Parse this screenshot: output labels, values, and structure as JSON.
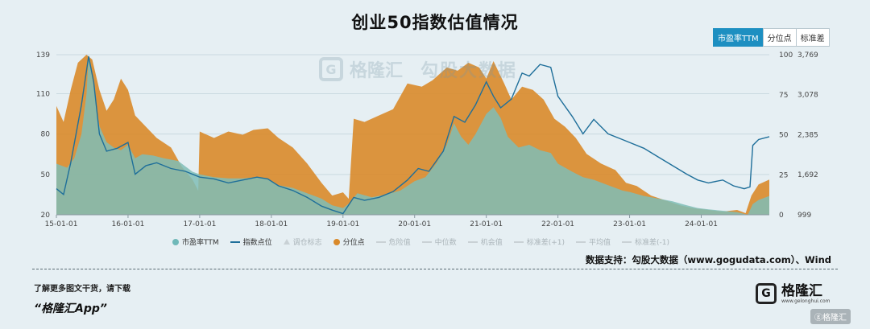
{
  "title": "创业50指数估值情况",
  "tabs": [
    {
      "label": "市盈率TTM",
      "active": true
    },
    {
      "label": "分位点",
      "active": false
    },
    {
      "label": "标准差",
      "active": false
    }
  ],
  "watermark": {
    "mark": "G",
    "name": "格隆汇",
    "sub": "勾股大数据"
  },
  "legend": [
    {
      "label": "市盈率TTM",
      "symbol": "dot",
      "color": "#6fb8b8",
      "muted": false
    },
    {
      "label": "指数点位",
      "symbol": "line",
      "color": "#1f6f9a",
      "muted": false
    },
    {
      "label": "调仓标志",
      "symbol": "tri",
      "color": "#c9d1d5",
      "muted": true
    },
    {
      "label": "分位点",
      "symbol": "dot",
      "color": "#d9892a",
      "muted": false
    },
    {
      "label": "危险值",
      "symbol": "line",
      "color": "#c9d1d5",
      "muted": true
    },
    {
      "label": "中位数",
      "symbol": "line",
      "color": "#c9d1d5",
      "muted": true
    },
    {
      "label": "机会值",
      "symbol": "line",
      "color": "#c9d1d5",
      "muted": true
    },
    {
      "label": "标准差(+1)",
      "symbol": "line",
      "color": "#c9d1d5",
      "muted": true
    },
    {
      "label": "平均值",
      "symbol": "line",
      "color": "#c9d1d5",
      "muted": true
    },
    {
      "label": "标准差(-1)",
      "symbol": "line",
      "color": "#c9d1d5",
      "muted": true
    }
  ],
  "source_text": "数据支持：勾股大数据（www.gogudata.com）、Wind",
  "promo": {
    "line1": "了解更多图文干货，请下载",
    "line2": "“格隆汇App”"
  },
  "brand": {
    "mark": "G",
    "name": "格隆汇",
    "url": "www.gelonghui.com"
  },
  "corner_badge": "ⓖ格隆汇",
  "colors": {
    "pe_fill": "#7fbdb6",
    "percentile_fill": "#d9892a",
    "index_line": "#1f6f9a",
    "grid": "#c9d9e0"
  },
  "chart_data": {
    "type": "area",
    "title": "创业50指数估值情况",
    "x_ticks": [
      "15-01-01",
      "16-01-01",
      "17-01-01",
      "18-01-01",
      "19-01-01",
      "20-01-01",
      "21-01-01",
      "22-01-01",
      "23-01-01",
      "24-01-01"
    ],
    "x_range": [
      2015.0,
      2024.95
    ],
    "y_left": {
      "ticks": [
        20,
        50,
        80,
        110,
        139
      ],
      "range": [
        20,
        139
      ]
    },
    "y_percentile": {
      "ticks": [
        0,
        25,
        50,
        75,
        100
      ],
      "range": [
        0,
        100
      ]
    },
    "y_index": {
      "ticks": [
        999,
        1692,
        2385,
        3078,
        3769
      ],
      "range": [
        999,
        3769
      ]
    },
    "legend_placement": "bottom",
    "grid": true,
    "series": [
      {
        "name": "市盈率TTM",
        "axis": "left",
        "kind": "area",
        "points": [
          [
            2015.0,
            58
          ],
          [
            2015.15,
            55
          ],
          [
            2015.25,
            62
          ],
          [
            2015.35,
            80
          ],
          [
            2015.42,
            110
          ],
          [
            2015.45,
            139
          ],
          [
            2015.52,
            115
          ],
          [
            2015.6,
            86
          ],
          [
            2015.7,
            74
          ],
          [
            2015.8,
            70
          ],
          [
            2015.9,
            68
          ],
          [
            2016.0,
            72
          ],
          [
            2016.1,
            62
          ],
          [
            2016.2,
            65
          ],
          [
            2016.35,
            64
          ],
          [
            2016.5,
            62
          ],
          [
            2016.7,
            60
          ],
          [
            2016.9,
            52
          ],
          [
            2017.0,
            50
          ],
          [
            2017.2,
            48
          ],
          [
            2017.4,
            47
          ],
          [
            2017.6,
            47
          ],
          [
            2017.8,
            48
          ],
          [
            2017.95,
            47
          ],
          [
            2018.1,
            42
          ],
          [
            2018.3,
            40
          ],
          [
            2018.5,
            36
          ],
          [
            2018.7,
            32
          ],
          [
            2018.85,
            27
          ],
          [
            2019.0,
            25
          ],
          [
            2019.1,
            29
          ],
          [
            2019.2,
            36
          ],
          [
            2019.4,
            33
          ],
          [
            2019.6,
            35
          ],
          [
            2019.8,
            38
          ],
          [
            2020.0,
            45
          ],
          [
            2020.15,
            48
          ],
          [
            2020.3,
            58
          ],
          [
            2020.45,
            72
          ],
          [
            2020.55,
            88
          ],
          [
            2020.65,
            78
          ],
          [
            2020.75,
            72
          ],
          [
            2020.85,
            80
          ],
          [
            2021.0,
            95
          ],
          [
            2021.1,
            100
          ],
          [
            2021.2,
            92
          ],
          [
            2021.3,
            78
          ],
          [
            2021.45,
            70
          ],
          [
            2021.6,
            72
          ],
          [
            2021.75,
            68
          ],
          [
            2021.9,
            66
          ],
          [
            2022.0,
            58
          ],
          [
            2022.2,
            52
          ],
          [
            2022.35,
            48
          ],
          [
            2022.5,
            46
          ],
          [
            2022.7,
            42
          ],
          [
            2022.9,
            38
          ],
          [
            2023.0,
            37
          ],
          [
            2023.2,
            34
          ],
          [
            2023.4,
            32
          ],
          [
            2023.6,
            30
          ],
          [
            2023.8,
            27
          ],
          [
            2023.95,
            25
          ],
          [
            2024.1,
            24
          ],
          [
            2024.3,
            23
          ],
          [
            2024.5,
            22
          ],
          [
            2024.65,
            20
          ],
          [
            2024.72,
            28
          ],
          [
            2024.8,
            31
          ],
          [
            2024.95,
            34
          ]
        ]
      },
      {
        "name": "分位点",
        "axis": "percentile",
        "kind": "area",
        "points": [
          [
            2015.0,
            68
          ],
          [
            2015.1,
            58
          ],
          [
            2015.2,
            78
          ],
          [
            2015.3,
            95
          ],
          [
            2015.42,
            100
          ],
          [
            2015.5,
            97
          ],
          [
            2015.6,
            78
          ],
          [
            2015.7,
            65
          ],
          [
            2015.8,
            72
          ],
          [
            2015.9,
            85
          ],
          [
            2016.0,
            78
          ],
          [
            2016.1,
            62
          ],
          [
            2016.25,
            55
          ],
          [
            2016.4,
            48
          ],
          [
            2016.6,
            42
          ],
          [
            2016.75,
            30
          ],
          [
            2016.9,
            22
          ],
          [
            2016.98,
            15
          ],
          [
            2017.0,
            52
          ],
          [
            2017.2,
            48
          ],
          [
            2017.4,
            52
          ],
          [
            2017.6,
            50
          ],
          [
            2017.75,
            53
          ],
          [
            2017.95,
            54
          ],
          [
            2018.1,
            48
          ],
          [
            2018.3,
            42
          ],
          [
            2018.5,
            32
          ],
          [
            2018.7,
            20
          ],
          [
            2018.85,
            12
          ],
          [
            2019.0,
            14
          ],
          [
            2019.08,
            10
          ],
          [
            2019.15,
            60
          ],
          [
            2019.3,
            58
          ],
          [
            2019.5,
            62
          ],
          [
            2019.7,
            66
          ],
          [
            2019.9,
            82
          ],
          [
            2020.1,
            80
          ],
          [
            2020.25,
            84
          ],
          [
            2020.45,
            92
          ],
          [
            2020.6,
            90
          ],
          [
            2020.75,
            95
          ],
          [
            2020.9,
            92
          ],
          [
            2021.0,
            85
          ],
          [
            2021.1,
            96
          ],
          [
            2021.25,
            82
          ],
          [
            2021.35,
            72
          ],
          [
            2021.5,
            80
          ],
          [
            2021.65,
            78
          ],
          [
            2021.8,
            72
          ],
          [
            2021.95,
            60
          ],
          [
            2022.1,
            55
          ],
          [
            2022.25,
            48
          ],
          [
            2022.4,
            38
          ],
          [
            2022.6,
            32
          ],
          [
            2022.8,
            28
          ],
          [
            2022.95,
            20
          ],
          [
            2023.1,
            18
          ],
          [
            2023.3,
            12
          ],
          [
            2023.5,
            9
          ],
          [
            2023.7,
            6
          ],
          [
            2023.9,
            4
          ],
          [
            2024.1,
            3
          ],
          [
            2024.3,
            2
          ],
          [
            2024.5,
            3
          ],
          [
            2024.62,
            1
          ],
          [
            2024.7,
            12
          ],
          [
            2024.8,
            19
          ],
          [
            2024.95,
            22
          ]
        ]
      },
      {
        "name": "指数点位",
        "axis": "index",
        "kind": "line",
        "points": [
          [
            2015.0,
            1450
          ],
          [
            2015.1,
            1350
          ],
          [
            2015.2,
            1900
          ],
          [
            2015.35,
            2900
          ],
          [
            2015.45,
            3740
          ],
          [
            2015.52,
            3300
          ],
          [
            2015.6,
            2400
          ],
          [
            2015.7,
            2100
          ],
          [
            2015.85,
            2150
          ],
          [
            2016.0,
            2250
          ],
          [
            2016.1,
            1700
          ],
          [
            2016.25,
            1850
          ],
          [
            2016.4,
            1900
          ],
          [
            2016.6,
            1800
          ],
          [
            2016.8,
            1750
          ],
          [
            2017.0,
            1650
          ],
          [
            2017.2,
            1620
          ],
          [
            2017.4,
            1550
          ],
          [
            2017.6,
            1600
          ],
          [
            2017.8,
            1650
          ],
          [
            2017.95,
            1620
          ],
          [
            2018.1,
            1500
          ],
          [
            2018.3,
            1420
          ],
          [
            2018.5,
            1300
          ],
          [
            2018.7,
            1150
          ],
          [
            2018.85,
            1080
          ],
          [
            2019.0,
            1020
          ],
          [
            2019.15,
            1300
          ],
          [
            2019.3,
            1250
          ],
          [
            2019.5,
            1300
          ],
          [
            2019.7,
            1400
          ],
          [
            2019.9,
            1600
          ],
          [
            2020.05,
            1800
          ],
          [
            2020.2,
            1750
          ],
          [
            2020.4,
            2100
          ],
          [
            2020.55,
            2700
          ],
          [
            2020.7,
            2600
          ],
          [
            2020.85,
            2900
          ],
          [
            2021.0,
            3300
          ],
          [
            2021.1,
            3050
          ],
          [
            2021.2,
            2850
          ],
          [
            2021.35,
            3000
          ],
          [
            2021.5,
            3450
          ],
          [
            2021.6,
            3400
          ],
          [
            2021.75,
            3600
          ],
          [
            2021.9,
            3550
          ],
          [
            2022.0,
            3050
          ],
          [
            2022.2,
            2700
          ],
          [
            2022.35,
            2400
          ],
          [
            2022.5,
            2650
          ],
          [
            2022.7,
            2400
          ],
          [
            2022.9,
            2300
          ],
          [
            2023.0,
            2250
          ],
          [
            2023.2,
            2150
          ],
          [
            2023.4,
            2000
          ],
          [
            2023.6,
            1850
          ],
          [
            2023.8,
            1700
          ],
          [
            2023.95,
            1600
          ],
          [
            2024.1,
            1550
          ],
          [
            2024.3,
            1600
          ],
          [
            2024.45,
            1500
          ],
          [
            2024.6,
            1450
          ],
          [
            2024.68,
            1480
          ],
          [
            2024.72,
            2200
          ],
          [
            2024.8,
            2300
          ],
          [
            2024.95,
            2350
          ]
        ]
      }
    ]
  }
}
